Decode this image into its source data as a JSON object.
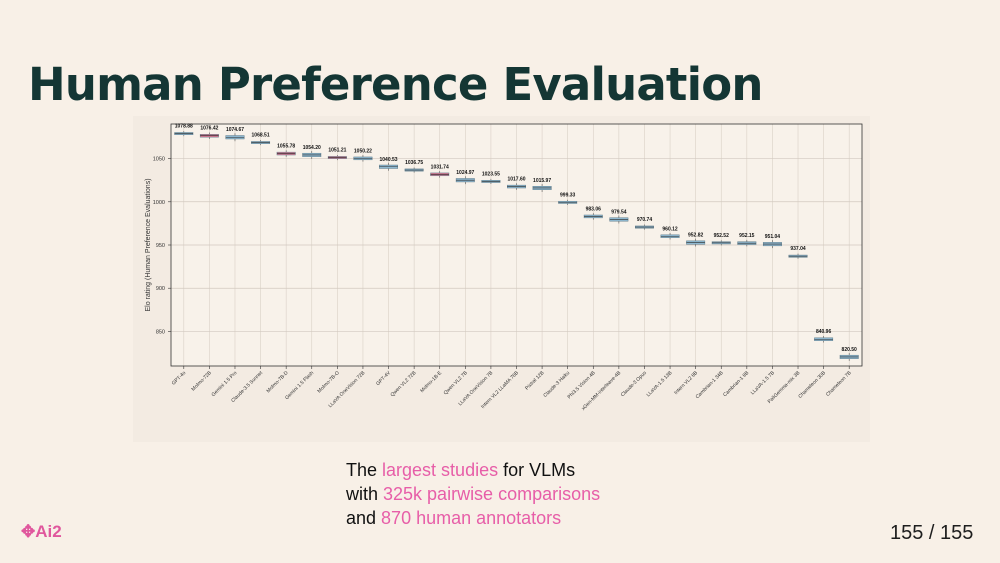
{
  "slide": {
    "title": "Human Preference Evaluation",
    "caption": {
      "line1": {
        "pre": "The ",
        "hl": "largest studies",
        "post": " for VLMs"
      },
      "line2": {
        "pre": "with ",
        "hl": "325k pairwise comparisons",
        "post": ""
      },
      "line3": {
        "pre": "and ",
        "hl": "870 human annotators",
        "post": ""
      }
    },
    "logo": "Ai2",
    "page_number": "155 / 155",
    "colors": {
      "background": "#f8f0e7",
      "title": "#143634",
      "highlight": "#e75ea8",
      "logo": "#e0579d"
    }
  },
  "chart_data": {
    "type": "box",
    "title": "",
    "xlabel": "",
    "ylabel": "Elo rating (Human Preference Evaluations)",
    "ylim": [
      810,
      1090
    ],
    "yticks": [
      850,
      900,
      950,
      1000,
      1050
    ],
    "grid": true,
    "categories": [
      "GPT-4o",
      "Molmo-72B",
      "Gemini 1.5 Pro",
      "Claude-3.5 Sonnet",
      "Molmo-7B-D",
      "Gemini 1.5 Flash",
      "Molmo-7B-O",
      "LLaVA OneVision 72B",
      "GPT-4V",
      "Qwen VL2 72B",
      "Molmo-1B-E",
      "Qwen VL2 7B",
      "LLaVA OneVision 7B",
      "Intern VL2 LLaMA 76B",
      "Pixtral 12B",
      "Claude-3 Haiku",
      "Phi3.5 Vision 4B",
      "xGen-MM-interleave-4B",
      "Claude-3 Opus",
      "LLaVA-1.5 13B",
      "Intern VL2 8B",
      "Cambrian-1 34B",
      "Cambrian-1 8B",
      "LLaVA-1.5 7B",
      "PaliGemma-mix 3B",
      "Chameleon 30B",
      "Chameleon 7B"
    ],
    "values": [
      1078.88,
      1076.42,
      1074.67,
      1068.51,
      1055.78,
      1054.2,
      1051.21,
      1050.22,
      1040.53,
      1036.75,
      1031.74,
      1024.97,
      1023.55,
      1017.6,
      1015.97,
      999.33,
      983.06,
      979.54,
      970.74,
      960.12,
      952.82,
      952.52,
      952.15,
      951.04,
      937.04,
      840.96,
      820.5
    ],
    "value_labels": [
      "1078.88",
      "1076.42",
      "1074.67",
      "1068.51",
      "1055.78",
      "1054.20",
      "1051.21",
      "1050.22",
      "1040.53",
      "1036.75",
      "1031.74",
      "1024.97",
      "1023.55",
      "1017.60",
      "1015.97",
      "999.33",
      "983.06",
      "979.54",
      "970.74",
      "960.12",
      "952.82",
      "952.52",
      "952.15",
      "951.04",
      "937.04",
      "840.96",
      "820.50"
    ],
    "colors": {
      "blue": "#8fb8d0",
      "pink": "#d3748f",
      "box_edge": "#5f7d8c"
    },
    "pink_categories": [
      "Molmo-72B",
      "Molmo-7B-D",
      "Molmo-7B-O",
      "Molmo-1B-E"
    ]
  }
}
